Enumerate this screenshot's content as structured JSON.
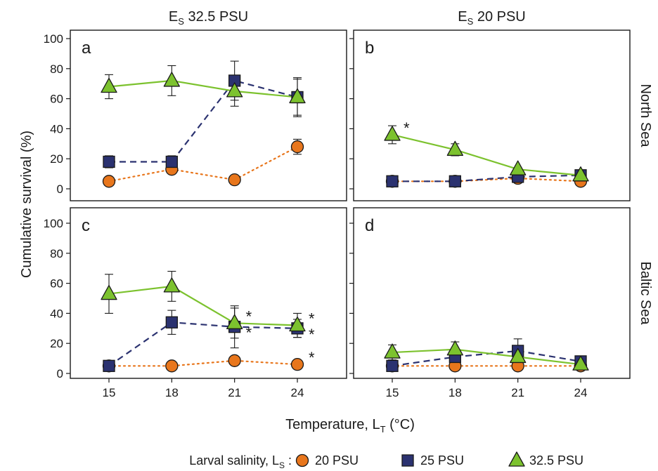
{
  "chart_data": {
    "type": "line",
    "xlabel": "Temperature, L",
    "xlabel_sub": "T",
    "xlabel_suffix": " (°C)",
    "ylabel": "Cumulative survival (%)",
    "x": [
      15,
      18,
      21,
      24
    ],
    "ylim": [
      0,
      100
    ],
    "yticks": [
      0,
      20,
      40,
      60,
      80,
      100
    ],
    "columns": [
      {
        "prefix": "E",
        "sub": "S",
        "suffix": " 32.5 PSU"
      },
      {
        "prefix": "E",
        "sub": "S",
        "suffix": " 20 PSU"
      }
    ],
    "rows": [
      "North Sea",
      "Baltic Sea"
    ],
    "legend": {
      "title_prefix": "Larval salinity, L",
      "title_sub": "S",
      "title_suffix": " :",
      "placement": "bottom"
    },
    "series_styles": [
      {
        "name": "20 PSU",
        "color": "#e8761c",
        "marker": "circle",
        "line": "dotted",
        "line_color": "#e8761c"
      },
      {
        "name": "25 PSU",
        "color": "#2b3270",
        "marker": "square",
        "line": "dashed",
        "line_color": "#2b3270"
      },
      {
        "name": "32.5 PSU",
        "color": "#7cc22e",
        "marker": "triangle",
        "line": "solid",
        "line_color": "#7cc22e"
      }
    ],
    "panels": [
      {
        "label": "a",
        "row": 0,
        "col": 0,
        "series": [
          {
            "name": "20 PSU",
            "values": [
              5,
              13,
              6,
              28
            ],
            "err": [
              0,
              0,
              0,
              5
            ],
            "stars": []
          },
          {
            "name": "25 PSU",
            "values": [
              18,
              18,
              72,
              61
            ],
            "err": [
              4,
              4,
              13,
              13
            ],
            "stars": []
          },
          {
            "name": "32.5 PSU",
            "values": [
              68,
              72,
              65,
              61
            ],
            "err": [
              8,
              10,
              10,
              12
            ],
            "stars": []
          }
        ]
      },
      {
        "label": "b",
        "row": 0,
        "col": 1,
        "series": [
          {
            "name": "20 PSU",
            "values": [
              5,
              5,
              7,
              5
            ],
            "err": [
              0,
              0,
              0,
              0
            ],
            "stars": []
          },
          {
            "name": "25 PSU",
            "values": [
              5,
              5,
              8,
              9
            ],
            "err": [
              0,
              0,
              0,
              0
            ],
            "stars": []
          },
          {
            "name": "32.5 PSU",
            "values": [
              36,
              26,
              13,
              9
            ],
            "err": [
              6,
              4,
              0,
              0
            ],
            "stars": [
              15
            ]
          }
        ]
      },
      {
        "label": "c",
        "row": 1,
        "col": 0,
        "series": [
          {
            "name": "20 PSU",
            "values": [
              5,
              5,
              8.5,
              6
            ],
            "err": [
              0,
              0,
              0,
              0
            ],
            "stars": [
              24
            ]
          },
          {
            "name": "25 PSU",
            "values": [
              5,
              34,
              31,
              30
            ],
            "err": [
              0,
              8,
              14,
              6
            ],
            "stars": [
              21,
              24
            ]
          },
          {
            "name": "32.5 PSU",
            "values": [
              53,
              58,
              33.5,
              32
            ],
            "err": [
              13,
              10,
              10,
              8
            ],
            "stars": [
              21,
              24
            ]
          }
        ]
      },
      {
        "label": "d",
        "row": 1,
        "col": 1,
        "series": [
          {
            "name": "20 PSU",
            "values": [
              5,
              5,
              5,
              5
            ],
            "err": [
              0,
              0,
              0,
              0
            ],
            "stars": []
          },
          {
            "name": "25 PSU",
            "values": [
              5,
              11,
              15,
              8
            ],
            "err": [
              0,
              0,
              8,
              0
            ],
            "stars": []
          },
          {
            "name": "32.5 PSU",
            "values": [
              14,
              16,
              11,
              6
            ],
            "err": [
              5,
              5,
              0,
              0
            ],
            "stars": []
          }
        ]
      }
    ]
  }
}
